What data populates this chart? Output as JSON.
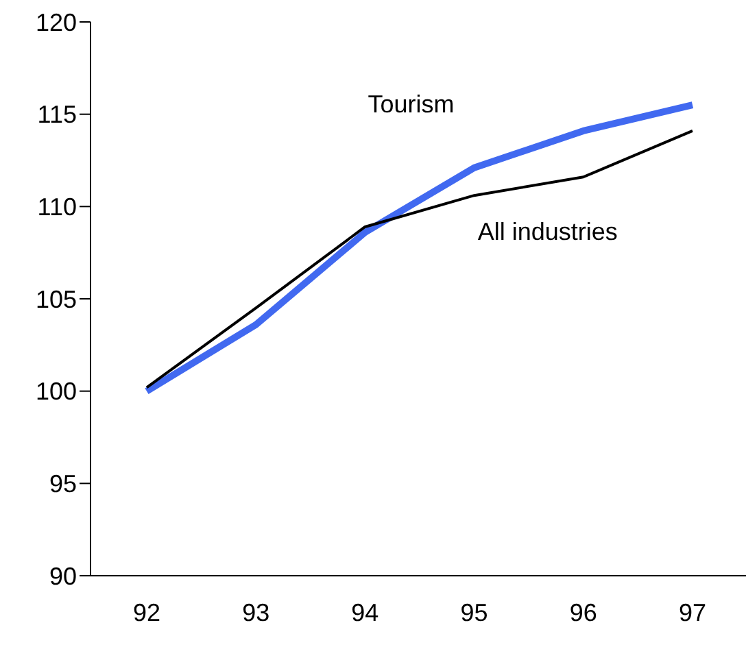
{
  "chart_data": {
    "type": "line",
    "categories": [
      "92",
      "93",
      "94",
      "95",
      "96",
      "97"
    ],
    "series": [
      {
        "name": "Tourism",
        "color": "#4169f0",
        "values": [
          100.0,
          103.6,
          108.6,
          112.1,
          114.1,
          115.5
        ]
      },
      {
        "name": "All industries",
        "color": "#000000",
        "values": [
          100.2,
          104.5,
          108.9,
          110.6,
          111.6,
          114.1
        ]
      }
    ],
    "ylim": [
      90,
      120
    ],
    "yticks": [
      90,
      95,
      100,
      105,
      110,
      115,
      120
    ],
    "grid": false,
    "legend": false,
    "marker": "none",
    "line_style": "solid"
  }
}
